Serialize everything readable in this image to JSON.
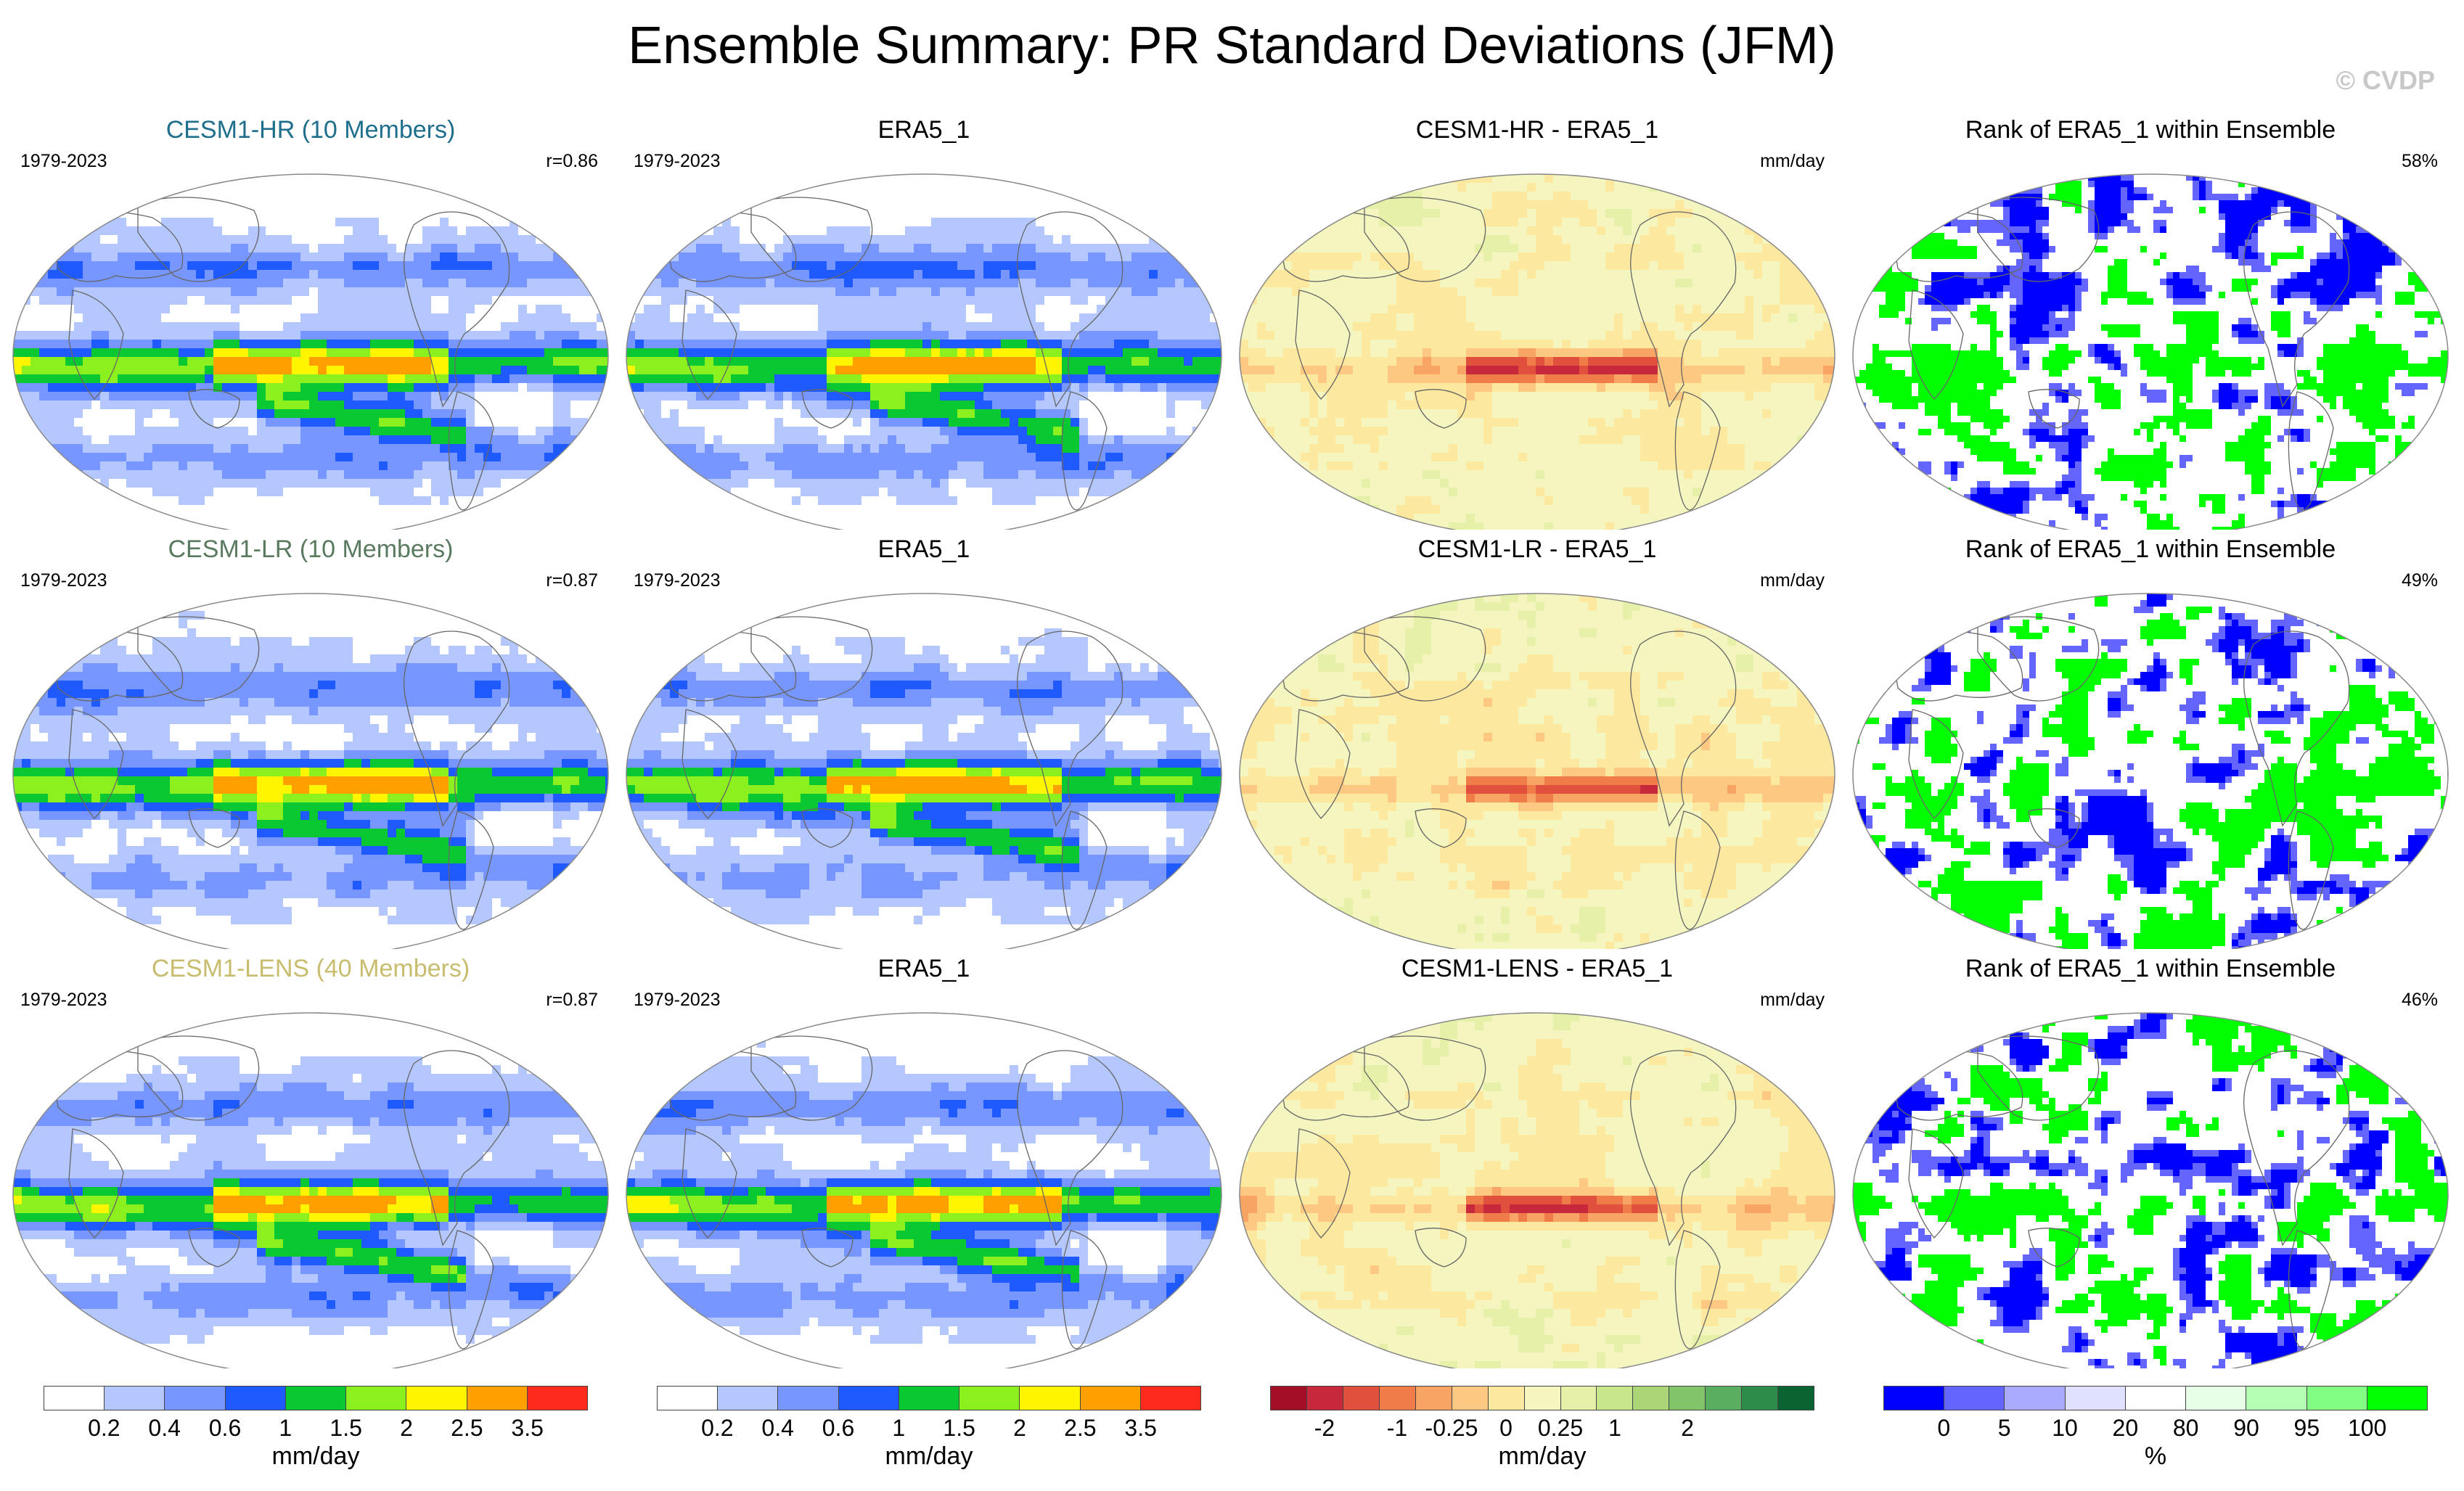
{
  "title": "Ensemble Summary: PR Standard Deviations (JFM)",
  "watermark": "© CVDP",
  "panels": [
    {
      "title": "CESM1-HR (10 Members)",
      "left": "1979-2023",
      "right": "r=0.86",
      "kind": "precip",
      "title_color": "#1e6e8c",
      "variant": 0
    },
    {
      "title": "ERA5_1",
      "left": "1979-2023",
      "right": "",
      "kind": "precip",
      "title_color": "#000000",
      "variant": 1
    },
    {
      "title": "CESM1-HR - ERA5_1",
      "left": "",
      "right": "mm/day",
      "kind": "diff",
      "title_color": "#000000",
      "variant": 2
    },
    {
      "title": "Rank of ERA5_1 within Ensemble",
      "left": "",
      "right": "58%",
      "kind": "rank",
      "title_color": "#000000",
      "variant": 3
    },
    {
      "title": "CESM1-LR (10 Members)",
      "left": "1979-2023",
      "right": "r=0.87",
      "kind": "precip",
      "title_color": "#5a7a60",
      "variant": 4
    },
    {
      "title": "ERA5_1",
      "left": "1979-2023",
      "right": "",
      "kind": "precip",
      "title_color": "#000000",
      "variant": 5
    },
    {
      "title": "CESM1-LR - ERA5_1",
      "left": "",
      "right": "mm/day",
      "kind": "diff",
      "title_color": "#000000",
      "variant": 6
    },
    {
      "title": "Rank of ERA5_1 within Ensemble",
      "left": "",
      "right": "49%",
      "kind": "rank",
      "title_color": "#000000",
      "variant": 7
    },
    {
      "title": "CESM1-LENS (40 Members)",
      "left": "1979-2023",
      "right": "r=0.87",
      "kind": "precip",
      "title_color": "#c8bc6e",
      "variant": 8
    },
    {
      "title": "ERA5_1",
      "left": "1979-2023",
      "right": "",
      "kind": "precip",
      "title_color": "#000000",
      "variant": 9
    },
    {
      "title": "CESM1-LENS - ERA5_1",
      "left": "",
      "right": "mm/day",
      "kind": "diff",
      "title_color": "#000000",
      "variant": 10
    },
    {
      "title": "Rank of ERA5_1 within Ensemble",
      "left": "",
      "right": "46%",
      "kind": "rank",
      "title_color": "#000000",
      "variant": 11
    }
  ],
  "colorbars": [
    {
      "colors": [
        "#ffffff",
        "#b4c8ff",
        "#7896ff",
        "#1e5aff",
        "#0ac832",
        "#8cf01e",
        "#fff500",
        "#ffa000",
        "#ff2a1e"
      ],
      "ticks": [
        "0.2",
        "0.4",
        "0.6",
        "1",
        "1.5",
        "2",
        "2.5",
        "3.5"
      ],
      "unit": "mm/day"
    },
    {
      "colors": [
        "#ffffff",
        "#b4c8ff",
        "#7896ff",
        "#1e5aff",
        "#0ac832",
        "#8cf01e",
        "#fff500",
        "#ffa000",
        "#ff2a1e"
      ],
      "ticks": [
        "0.2",
        "0.4",
        "0.6",
        "1",
        "1.5",
        "2",
        "2.5",
        "3.5"
      ],
      "unit": "mm/day"
    },
    {
      "colors": [
        "#a50f26",
        "#c8283c",
        "#e1503c",
        "#f07c4a",
        "#f8a464",
        "#fcc882",
        "#fde8a0",
        "#f5f5c0",
        "#e6f0a8",
        "#c8e68c",
        "#aad678",
        "#82c46a",
        "#5aae60",
        "#2d8c4a",
        "#0a6432"
      ],
      "ticks": [
        "-2",
        "-1",
        "-0.25",
        "0",
        "0.25",
        "1",
        "2"
      ],
      "tick_pos": [
        1.5,
        3.5,
        5.0,
        6.5,
        8.0,
        9.5,
        11.5
      ],
      "unit": "mm/day"
    },
    {
      "colors": [
        "#0000ff",
        "#6464ff",
        "#aaaaff",
        "#e0e0ff",
        "#ffffff",
        "#e6ffe6",
        "#b4ffb4",
        "#82ff82",
        "#00ff00"
      ],
      "ticks": [
        "0",
        "5",
        "10",
        "20",
        "80",
        "90",
        "95",
        "100"
      ],
      "unit": "%"
    }
  ]
}
